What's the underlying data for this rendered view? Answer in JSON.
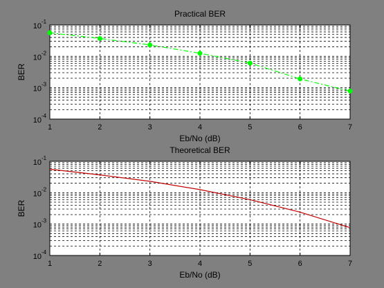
{
  "chart_data": [
    {
      "type": "line",
      "title": "Practical BER",
      "xlabel": "Eb/No (dB)",
      "ylabel": "BER",
      "yscale": "log",
      "xlim": [
        1,
        7
      ],
      "ylim": [
        0.0001,
        0.1
      ],
      "x_ticks": [
        "1",
        "2",
        "3",
        "4",
        "5",
        "6",
        "7"
      ],
      "y_ticks": [
        {
          "base": "10",
          "exp": "-1",
          "value": 0.1
        },
        {
          "base": "10",
          "exp": "-2",
          "value": 0.01
        },
        {
          "base": "10",
          "exp": "-3",
          "value": 0.001
        },
        {
          "base": "10",
          "exp": "-4",
          "value": 0.0001
        }
      ],
      "grid": true,
      "series": [
        {
          "x": [
            1,
            2,
            3,
            4,
            5,
            6,
            7
          ],
          "values": [
            0.056,
            0.037,
            0.023,
            0.0125,
            0.0061,
            0.0019,
            0.00078
          ],
          "color": "#00ff00",
          "line_style": "dash-dot",
          "marker": "dot"
        }
      ]
    },
    {
      "type": "line",
      "title": "Theoretical BER",
      "xlabel": "Eb/No (dB)",
      "ylabel": "BER",
      "yscale": "log",
      "xlim": [
        1,
        7
      ],
      "ylim": [
        0.0001,
        0.1
      ],
      "x_ticks": [
        "1",
        "2",
        "3",
        "4",
        "5",
        "6",
        "7"
      ],
      "y_ticks": [
        {
          "base": "10",
          "exp": "-1",
          "value": 0.1
        },
        {
          "base": "10",
          "exp": "-2",
          "value": 0.01
        },
        {
          "base": "10",
          "exp": "-3",
          "value": 0.001
        },
        {
          "base": "10",
          "exp": "-4",
          "value": 0.0001
        }
      ],
      "grid": true,
      "series": [
        {
          "x": [
            1,
            2,
            3,
            4,
            5,
            6,
            7
          ],
          "values": [
            0.056,
            0.037,
            0.023,
            0.0125,
            0.006,
            0.0024,
            0.00077
          ],
          "color": "#c00000",
          "line_style": "solid",
          "marker": "none"
        }
      ]
    }
  ]
}
